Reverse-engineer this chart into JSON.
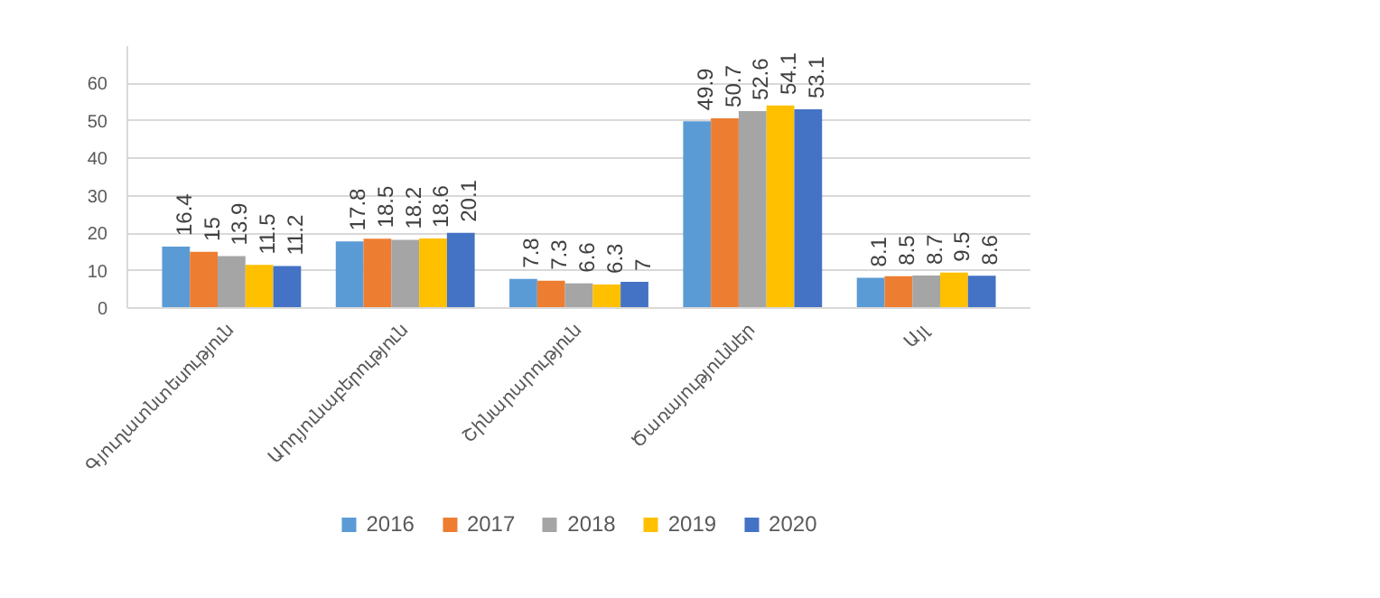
{
  "chart_data": {
    "type": "bar",
    "categories": [
      "Գյուղատնտեսություն",
      "Արդյունաբերություն",
      "Շինարարություն",
      "Ծառայություններ",
      "Այլ"
    ],
    "series": [
      {
        "name": "2016",
        "color": "#5b9bd5",
        "values": [
          16.4,
          17.8,
          7.8,
          49.9,
          8.1
        ]
      },
      {
        "name": "2017",
        "color": "#ed7d31",
        "values": [
          15,
          18.5,
          7.3,
          50.7,
          8.5
        ]
      },
      {
        "name": "2018",
        "color": "#a5a5a5",
        "values": [
          13.9,
          18.2,
          6.6,
          52.6,
          8.7
        ]
      },
      {
        "name": "2019",
        "color": "#ffc000",
        "values": [
          11.5,
          18.6,
          6.3,
          54.1,
          9.5
        ]
      },
      {
        "name": "2020",
        "color": "#4472c4",
        "values": [
          11.2,
          20.1,
          7,
          53.1,
          8.6
        ]
      }
    ],
    "ylim": [
      0,
      70
    ],
    "yticks": [
      0,
      10,
      20,
      30,
      40,
      50,
      60
    ],
    "grid": "y",
    "legend": "bottom",
    "data_labels": true
  }
}
